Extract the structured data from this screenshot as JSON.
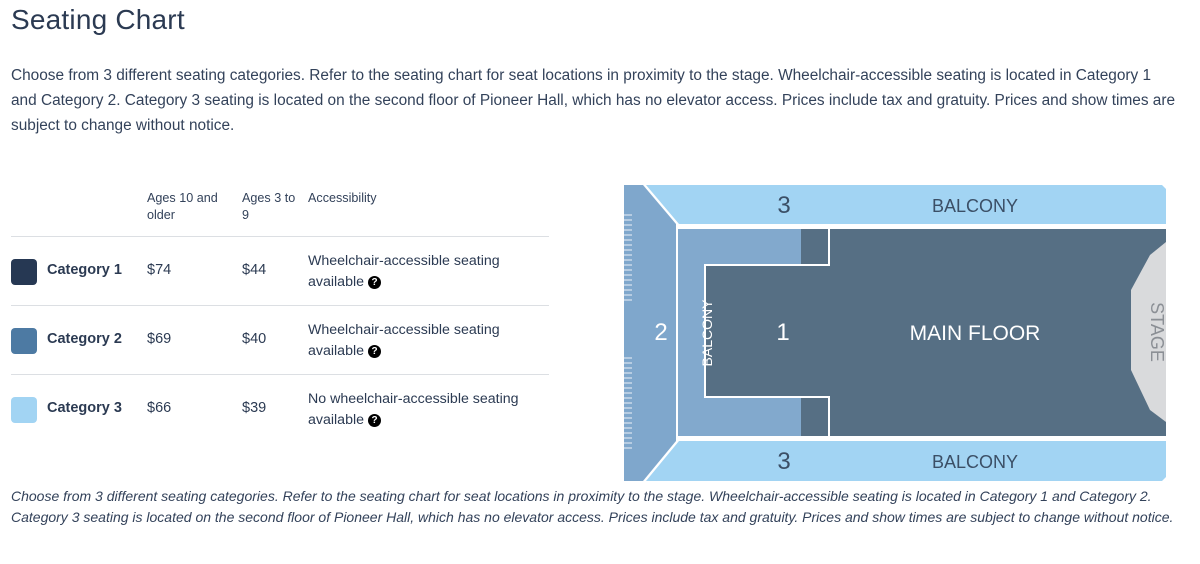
{
  "title": "Seating Chart",
  "intro": "Choose from 3 different seating categories. Refer to the seating chart for seat locations in proximity to the stage. Wheelchair-accessible seating is located in Category 1 and Category 2. Category 3 seating is located on the second floor of Pioneer Hall, which has no elevator access. Prices include tax and gratuity. Prices and show times are subject to change without notice.",
  "table": {
    "headers": [
      "Ages 10 and older",
      "Ages 3 to 9",
      "Accessibility"
    ],
    "rows": [
      {
        "category": "Category 1",
        "color": "#263853",
        "adult": "$74",
        "child": "$44",
        "accessibility": "Wheelchair-accessible seating available"
      },
      {
        "category": "Category 2",
        "color": "#4d7aa3",
        "adult": "$69",
        "child": "$40",
        "accessibility": "Wheelchair-accessible seating available"
      },
      {
        "category": "Category 3",
        "color": "#a2d4f3",
        "adult": "$66",
        "child": "$39",
        "accessibility": "No wheelchair-accessible seating available"
      }
    ]
  },
  "map": {
    "top_number": "3",
    "top_label": "BALCONY",
    "bottom_number": "3",
    "bottom_label": "BALCONY",
    "left_number": "2",
    "side_label": "BALCONY",
    "main_number": "1",
    "main_label": "MAIN FLOOR",
    "stage_label": "STAGE",
    "colors": {
      "cat1": "#566f84",
      "cat2_outer": "#7fa7cc",
      "cat2_inner": "#82a9cd",
      "cat3": "#a2d4f3",
      "stage": "#d9dadc"
    }
  },
  "caption": "Choose from 3 different seating categories. Refer to the seating chart for seat locations in proximity to the stage. Wheelchair-accessible seating is located in Category 1 and Category 2. Category 3 seating is located on the second floor of Pioneer Hall, which has no elevator access. Prices include tax and gratuity. Prices and show times are subject to change without notice."
}
